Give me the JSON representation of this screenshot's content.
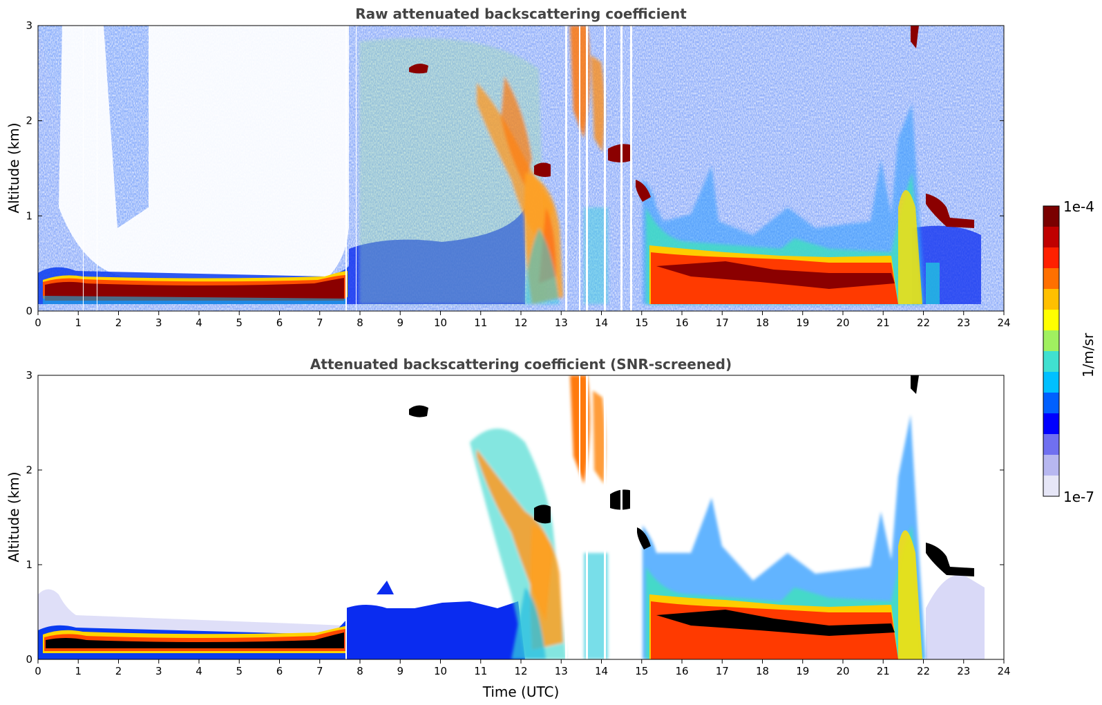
{
  "chart_data": [
    {
      "type": "heatmap",
      "id": "raw",
      "title": "Raw attenuated backscattering coefficient",
      "xlabel": "",
      "ylabel": "Altitude (km)",
      "xlim": [
        0,
        24
      ],
      "ylim": [
        0,
        3
      ],
      "xticks": [
        "0",
        "1",
        "2",
        "3",
        "4",
        "5",
        "6",
        "7",
        "8",
        "9",
        "10",
        "11",
        "12",
        "13",
        "14",
        "15",
        "16",
        "17",
        "18",
        "19",
        "20",
        "21",
        "22",
        "23",
        "24"
      ],
      "yticks": [
        "0",
        "1",
        "2",
        "3"
      ],
      "features": [
        {
          "name": "boundary layer aerosol",
          "t": [
            0.2,
            7.8
          ],
          "alt": [
            0.05,
            0.35
          ],
          "level": "high"
        },
        {
          "name": "elevated cloud",
          "t": [
            9.4,
            9.8
          ],
          "alt": [
            2.5,
            2.65
          ],
          "level": "saturated"
        },
        {
          "name": "convective cloud plume",
          "t": [
            11.0,
            13.5
          ],
          "alt": [
            0.3,
            2.5
          ],
          "level": "medium-high"
        },
        {
          "name": "cloud deck",
          "t": [
            15.5,
            22.0
          ],
          "alt": [
            0.05,
            0.6
          ],
          "level": "high"
        },
        {
          "name": "elevated cloud",
          "t": [
            23.0,
            23.6
          ],
          "alt": [
            0.8,
            1.2
          ],
          "level": "saturated"
        }
      ]
    },
    {
      "type": "heatmap",
      "id": "screened",
      "title": "Attenuated backscattering coefficient (SNR-screened)",
      "xlabel": "Time (UTC)",
      "ylabel": "Altitude (km)",
      "xlim": [
        0,
        24
      ],
      "ylim": [
        0,
        3
      ],
      "xticks": [
        "0",
        "1",
        "2",
        "3",
        "4",
        "5",
        "6",
        "7",
        "8",
        "9",
        "10",
        "11",
        "12",
        "13",
        "14",
        "15",
        "16",
        "17",
        "18",
        "19",
        "20",
        "21",
        "22",
        "23",
        "24"
      ],
      "yticks": [
        "0",
        "1",
        "2",
        "3"
      ]
    }
  ],
  "colorbar": {
    "label": "1/m/sr",
    "max_label": "1e-4",
    "min_label": "1e-7",
    "colors": [
      "#e6e6f7",
      "#b7b7f0",
      "#7070f0",
      "#0000ff",
      "#0060ff",
      "#00c0ff",
      "#40e0d0",
      "#a0f060",
      "#ffff00",
      "#ffc000",
      "#ff7000",
      "#ff2000",
      "#c00000",
      "#7a0000"
    ]
  }
}
